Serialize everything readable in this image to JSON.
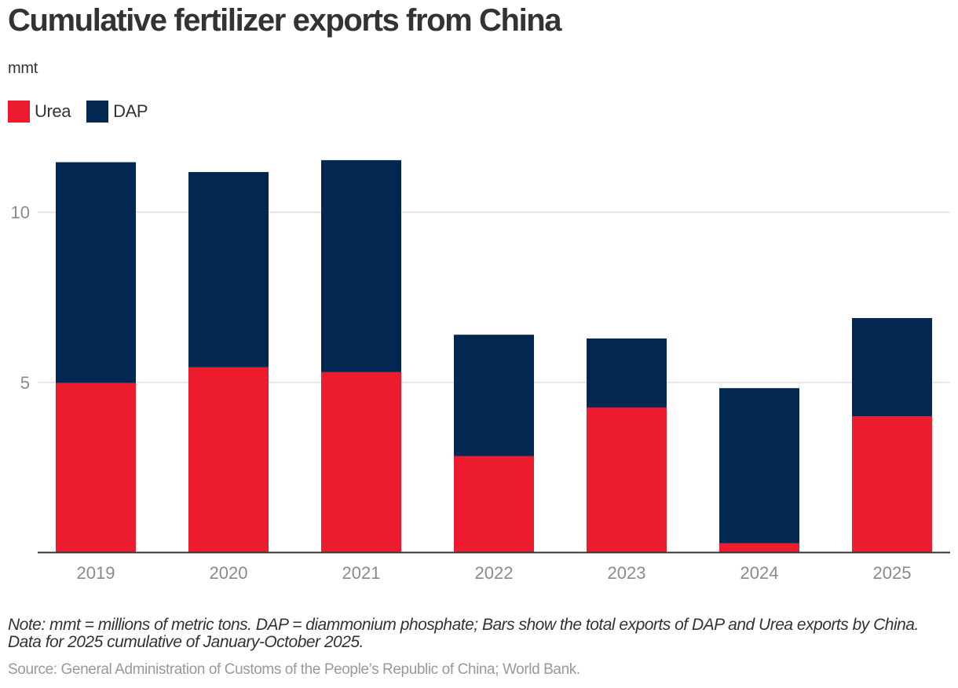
{
  "chart_data": {
    "type": "bar",
    "stacked": true,
    "title": "Cumulative fertilizer exports from China",
    "subtitle": "mmt",
    "xlabel": "",
    "ylabel": "mmt",
    "ylim": [
      0,
      12.5
    ],
    "yticks": [
      5,
      10
    ],
    "grid": true,
    "legend_position": "top-left",
    "categories": [
      "2019",
      "2020",
      "2021",
      "2022",
      "2023",
      "2024",
      "2025"
    ],
    "series": [
      {
        "name": "Urea",
        "color": "#EC1C2E",
        "values": [
          4.98,
          5.44,
          5.3,
          2.83,
          4.26,
          0.27,
          4.0
        ]
      },
      {
        "name": "DAP",
        "color": "#022851",
        "values": [
          6.49,
          5.74,
          6.23,
          3.57,
          2.03,
          4.56,
          2.89
        ]
      }
    ],
    "totals": [
      11.47,
      11.18,
      11.53,
      6.4,
      6.29,
      4.83,
      6.89
    ]
  },
  "note": "Note: mmt = millions of metric tons. DAP = diammonium phosphate; Bars show the total exports of DAP and Urea exports by China. Data for 2025 cumulative of January-October 2025.",
  "source": "Source: General Administration of Customs of the People’s Republic of China; World Bank."
}
